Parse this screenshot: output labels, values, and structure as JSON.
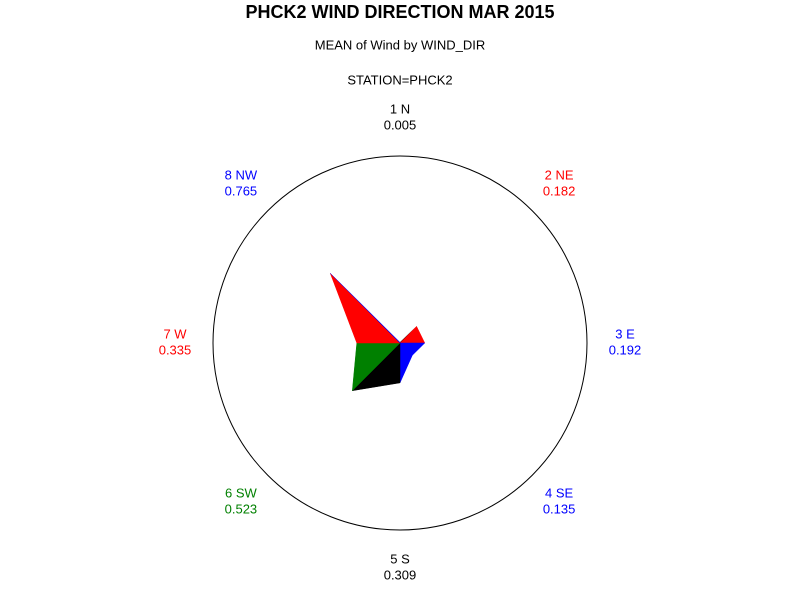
{
  "chart_data": {
    "type": "star",
    "title": "PHCK2 WIND DIRECTION MAR 2015",
    "subtitle": "MEAN of Wind by WIND_DIR",
    "station": "STATION=PHCK2",
    "categories": [
      "1 N",
      "2 NE",
      "3 E",
      "4 SE",
      "5 S",
      "6 SW",
      "7 W",
      "8 NW"
    ],
    "values": [
      0.005,
      0.182,
      0.192,
      0.135,
      0.309,
      0.523,
      0.335,
      0.765
    ],
    "colors": [
      "#000000",
      "#ff0000",
      "#0000ff",
      "#0000ff",
      "#000000",
      "#008000",
      "#ff0000",
      "#0000ff"
    ]
  }
}
